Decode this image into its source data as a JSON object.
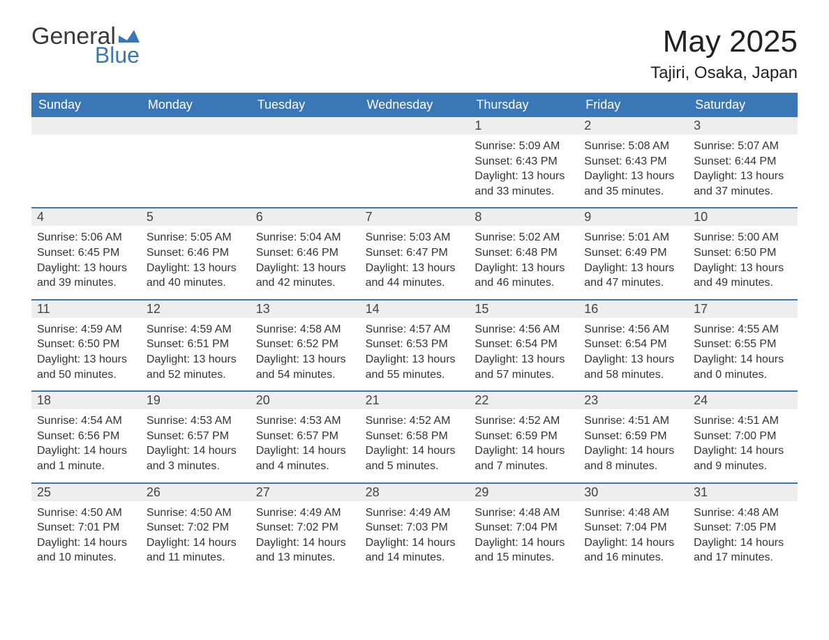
{
  "logo": {
    "text1": "General",
    "text2": "Blue",
    "accent_color": "#3a77b7",
    "text_color": "#3a3a3a"
  },
  "title": "May 2025",
  "location": "Tajiri, Osaka, Japan",
  "colors": {
    "header_bg": "#3a77b7",
    "header_text": "#ffffff",
    "daynum_bg": "#eeeeee",
    "week_border": "#3a77b7",
    "body_text": "#333333",
    "background": "#ffffff"
  },
  "typography": {
    "title_fontsize": 44,
    "location_fontsize": 24,
    "header_fontsize": 18,
    "daynum_fontsize": 18,
    "body_fontsize": 16,
    "font_family": "Arial"
  },
  "day_headers": [
    "Sunday",
    "Monday",
    "Tuesday",
    "Wednesday",
    "Thursday",
    "Friday",
    "Saturday"
  ],
  "weeks": [
    [
      {
        "empty": true
      },
      {
        "empty": true
      },
      {
        "empty": true
      },
      {
        "empty": true
      },
      {
        "num": "1",
        "sunrise": "Sunrise: 5:09 AM",
        "sunset": "Sunset: 6:43 PM",
        "daylight1": "Daylight: 13 hours",
        "daylight2": "and 33 minutes."
      },
      {
        "num": "2",
        "sunrise": "Sunrise: 5:08 AM",
        "sunset": "Sunset: 6:43 PM",
        "daylight1": "Daylight: 13 hours",
        "daylight2": "and 35 minutes."
      },
      {
        "num": "3",
        "sunrise": "Sunrise: 5:07 AM",
        "sunset": "Sunset: 6:44 PM",
        "daylight1": "Daylight: 13 hours",
        "daylight2": "and 37 minutes."
      }
    ],
    [
      {
        "num": "4",
        "sunrise": "Sunrise: 5:06 AM",
        "sunset": "Sunset: 6:45 PM",
        "daylight1": "Daylight: 13 hours",
        "daylight2": "and 39 minutes."
      },
      {
        "num": "5",
        "sunrise": "Sunrise: 5:05 AM",
        "sunset": "Sunset: 6:46 PM",
        "daylight1": "Daylight: 13 hours",
        "daylight2": "and 40 minutes."
      },
      {
        "num": "6",
        "sunrise": "Sunrise: 5:04 AM",
        "sunset": "Sunset: 6:46 PM",
        "daylight1": "Daylight: 13 hours",
        "daylight2": "and 42 minutes."
      },
      {
        "num": "7",
        "sunrise": "Sunrise: 5:03 AM",
        "sunset": "Sunset: 6:47 PM",
        "daylight1": "Daylight: 13 hours",
        "daylight2": "and 44 minutes."
      },
      {
        "num": "8",
        "sunrise": "Sunrise: 5:02 AM",
        "sunset": "Sunset: 6:48 PM",
        "daylight1": "Daylight: 13 hours",
        "daylight2": "and 46 minutes."
      },
      {
        "num": "9",
        "sunrise": "Sunrise: 5:01 AM",
        "sunset": "Sunset: 6:49 PM",
        "daylight1": "Daylight: 13 hours",
        "daylight2": "and 47 minutes."
      },
      {
        "num": "10",
        "sunrise": "Sunrise: 5:00 AM",
        "sunset": "Sunset: 6:50 PM",
        "daylight1": "Daylight: 13 hours",
        "daylight2": "and 49 minutes."
      }
    ],
    [
      {
        "num": "11",
        "sunrise": "Sunrise: 4:59 AM",
        "sunset": "Sunset: 6:50 PM",
        "daylight1": "Daylight: 13 hours",
        "daylight2": "and 50 minutes."
      },
      {
        "num": "12",
        "sunrise": "Sunrise: 4:59 AM",
        "sunset": "Sunset: 6:51 PM",
        "daylight1": "Daylight: 13 hours",
        "daylight2": "and 52 minutes."
      },
      {
        "num": "13",
        "sunrise": "Sunrise: 4:58 AM",
        "sunset": "Sunset: 6:52 PM",
        "daylight1": "Daylight: 13 hours",
        "daylight2": "and 54 minutes."
      },
      {
        "num": "14",
        "sunrise": "Sunrise: 4:57 AM",
        "sunset": "Sunset: 6:53 PM",
        "daylight1": "Daylight: 13 hours",
        "daylight2": "and 55 minutes."
      },
      {
        "num": "15",
        "sunrise": "Sunrise: 4:56 AM",
        "sunset": "Sunset: 6:54 PM",
        "daylight1": "Daylight: 13 hours",
        "daylight2": "and 57 minutes."
      },
      {
        "num": "16",
        "sunrise": "Sunrise: 4:56 AM",
        "sunset": "Sunset: 6:54 PM",
        "daylight1": "Daylight: 13 hours",
        "daylight2": "and 58 minutes."
      },
      {
        "num": "17",
        "sunrise": "Sunrise: 4:55 AM",
        "sunset": "Sunset: 6:55 PM",
        "daylight1": "Daylight: 14 hours",
        "daylight2": "and 0 minutes."
      }
    ],
    [
      {
        "num": "18",
        "sunrise": "Sunrise: 4:54 AM",
        "sunset": "Sunset: 6:56 PM",
        "daylight1": "Daylight: 14 hours",
        "daylight2": "and 1 minute."
      },
      {
        "num": "19",
        "sunrise": "Sunrise: 4:53 AM",
        "sunset": "Sunset: 6:57 PM",
        "daylight1": "Daylight: 14 hours",
        "daylight2": "and 3 minutes."
      },
      {
        "num": "20",
        "sunrise": "Sunrise: 4:53 AM",
        "sunset": "Sunset: 6:57 PM",
        "daylight1": "Daylight: 14 hours",
        "daylight2": "and 4 minutes."
      },
      {
        "num": "21",
        "sunrise": "Sunrise: 4:52 AM",
        "sunset": "Sunset: 6:58 PM",
        "daylight1": "Daylight: 14 hours",
        "daylight2": "and 5 minutes."
      },
      {
        "num": "22",
        "sunrise": "Sunrise: 4:52 AM",
        "sunset": "Sunset: 6:59 PM",
        "daylight1": "Daylight: 14 hours",
        "daylight2": "and 7 minutes."
      },
      {
        "num": "23",
        "sunrise": "Sunrise: 4:51 AM",
        "sunset": "Sunset: 6:59 PM",
        "daylight1": "Daylight: 14 hours",
        "daylight2": "and 8 minutes."
      },
      {
        "num": "24",
        "sunrise": "Sunrise: 4:51 AM",
        "sunset": "Sunset: 7:00 PM",
        "daylight1": "Daylight: 14 hours",
        "daylight2": "and 9 minutes."
      }
    ],
    [
      {
        "num": "25",
        "sunrise": "Sunrise: 4:50 AM",
        "sunset": "Sunset: 7:01 PM",
        "daylight1": "Daylight: 14 hours",
        "daylight2": "and 10 minutes."
      },
      {
        "num": "26",
        "sunrise": "Sunrise: 4:50 AM",
        "sunset": "Sunset: 7:02 PM",
        "daylight1": "Daylight: 14 hours",
        "daylight2": "and 11 minutes."
      },
      {
        "num": "27",
        "sunrise": "Sunrise: 4:49 AM",
        "sunset": "Sunset: 7:02 PM",
        "daylight1": "Daylight: 14 hours",
        "daylight2": "and 13 minutes."
      },
      {
        "num": "28",
        "sunrise": "Sunrise: 4:49 AM",
        "sunset": "Sunset: 7:03 PM",
        "daylight1": "Daylight: 14 hours",
        "daylight2": "and 14 minutes."
      },
      {
        "num": "29",
        "sunrise": "Sunrise: 4:48 AM",
        "sunset": "Sunset: 7:04 PM",
        "daylight1": "Daylight: 14 hours",
        "daylight2": "and 15 minutes."
      },
      {
        "num": "30",
        "sunrise": "Sunrise: 4:48 AM",
        "sunset": "Sunset: 7:04 PM",
        "daylight1": "Daylight: 14 hours",
        "daylight2": "and 16 minutes."
      },
      {
        "num": "31",
        "sunrise": "Sunrise: 4:48 AM",
        "sunset": "Sunset: 7:05 PM",
        "daylight1": "Daylight: 14 hours",
        "daylight2": "and 17 minutes."
      }
    ]
  ]
}
